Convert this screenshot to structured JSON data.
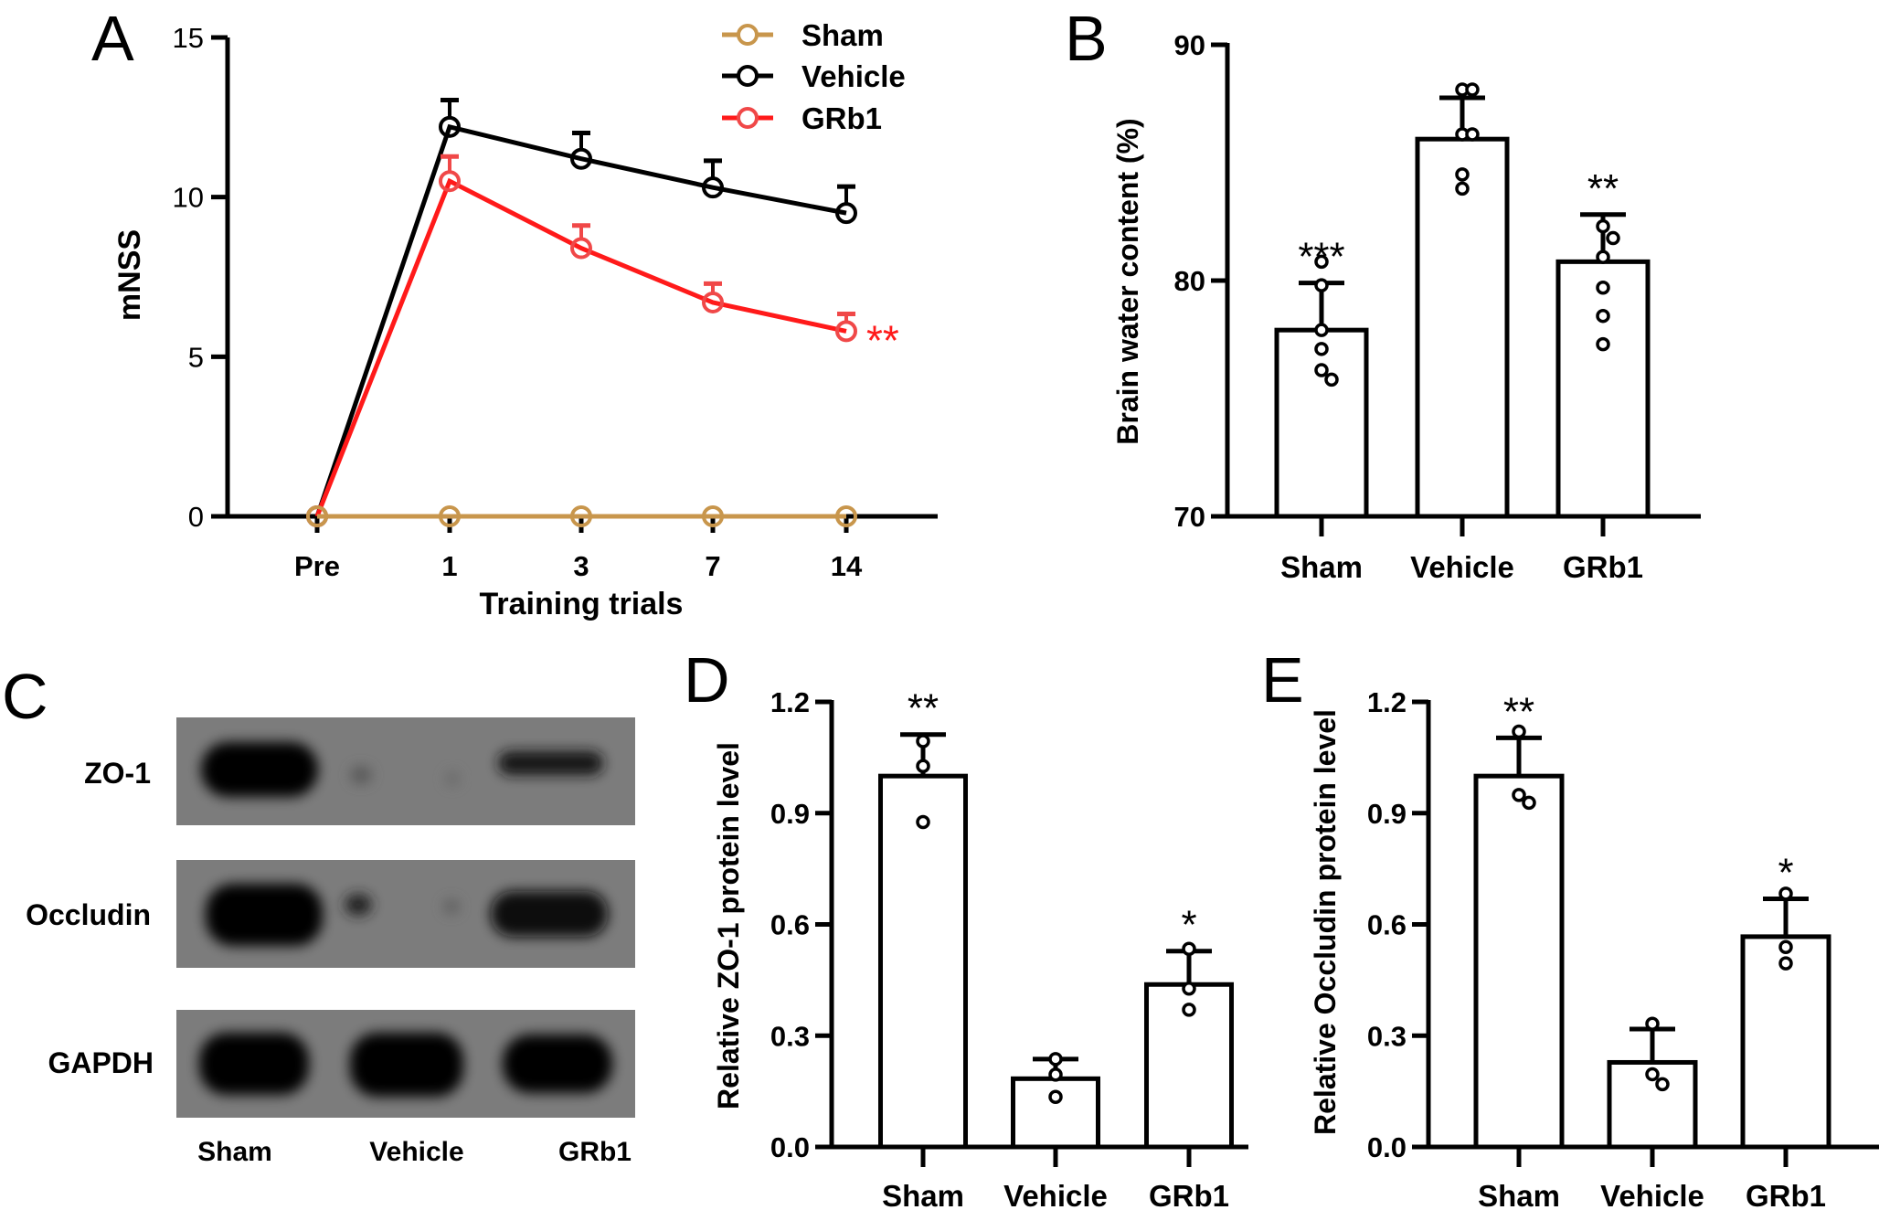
{
  "panels": {
    "a": "A",
    "b": "B",
    "c": "C",
    "d": "D",
    "e": "E"
  },
  "blot": {
    "rows": [
      "ZO-1",
      "Occludin",
      "GAPDH"
    ],
    "lanes": [
      "Sham",
      "Vehicle",
      "GRb1"
    ]
  },
  "chart_data": [
    {
      "panel": "A",
      "type": "line",
      "categories": [
        "Pre",
        "1",
        "3",
        "7",
        "14"
      ],
      "xlabel": "Training trials",
      "ylabel": "mNSS",
      "ylim": [
        0,
        15
      ],
      "yticks": [
        0,
        5,
        10,
        15
      ],
      "grid": false,
      "legend": "top-right",
      "series": [
        {
          "name": "Sham",
          "color": "#c8964c",
          "values": [
            0,
            0,
            0,
            0,
            0
          ],
          "error": [
            0,
            0,
            0,
            0,
            0
          ]
        },
        {
          "name": "Vehicle",
          "color": "#000000",
          "values": [
            0,
            12.2,
            11.2,
            10.3,
            9.5
          ],
          "error": [
            0,
            0.84,
            0.81,
            0.84,
            0.83
          ]
        },
        {
          "name": "GRb1",
          "color": "#ff1a1a",
          "values": [
            0,
            10.5,
            8.4,
            6.7,
            5.8
          ],
          "error": [
            0,
            0.77,
            0.71,
            0.59,
            0.54
          ]
        }
      ],
      "annotations": [
        {
          "text": "**",
          "series": "GRb1",
          "category": "14",
          "color": "#ff1a1a"
        }
      ]
    },
    {
      "panel": "B",
      "type": "bar",
      "categories": [
        "Sham",
        "Vehicle",
        "GRb1"
      ],
      "values": [
        77.9,
        86.0,
        80.8
      ],
      "error": [
        2.0,
        1.75,
        2.0
      ],
      "points": [
        [
          80.8,
          79.8,
          77.9,
          77.1,
          76.2,
          75.8
        ],
        [
          88.1,
          88.1,
          86.2,
          86.2,
          84.5,
          83.9
        ],
        [
          82.3,
          81.8,
          81.0,
          79.7,
          78.5,
          77.3
        ]
      ],
      "significance": [
        "***",
        "",
        "**"
      ],
      "ylabel": "Brain water content (%)",
      "xlabel": "",
      "ylim": [
        70,
        90
      ],
      "yticks": [
        70,
        80,
        90
      ],
      "grid": false
    },
    {
      "panel": "D",
      "type": "bar",
      "categories": [
        "Sham",
        "Vehicle",
        "GRb1"
      ],
      "values": [
        1.0,
        0.184,
        0.438
      ],
      "error": [
        0.112,
        0.053,
        0.09
      ],
      "points": [
        [
          1.094,
          1.027,
          0.876
        ],
        [
          0.237,
          0.195,
          0.135
        ],
        [
          0.534,
          0.427,
          0.37
        ]
      ],
      "significance": [
        "**",
        "",
        "*"
      ],
      "ylabel": "Relative ZO-1 protein level",
      "xlabel": "",
      "ylim": [
        0,
        1.2
      ],
      "yticks": [
        "0.0",
        "0.3",
        "0.6",
        "0.9",
        "1.2"
      ],
      "grid": false
    },
    {
      "panel": "E",
      "type": "bar",
      "categories": [
        "Sham",
        "Vehicle",
        "GRb1"
      ],
      "values": [
        1.0,
        0.228,
        0.567
      ],
      "error": [
        0.103,
        0.09,
        0.102
      ],
      "points": [
        [
          1.12,
          0.949,
          0.928
        ],
        [
          0.332,
          0.196,
          0.169
        ],
        [
          0.683,
          0.539,
          0.495
        ]
      ],
      "significance": [
        "**",
        "",
        "*"
      ],
      "ylabel": "Relative Occludin protein level",
      "xlabel": "",
      "ylim": [
        0,
        1.2
      ],
      "yticks": [
        "0.0",
        "0.3",
        "0.6",
        "0.9",
        "1.2"
      ],
      "grid": false
    }
  ]
}
